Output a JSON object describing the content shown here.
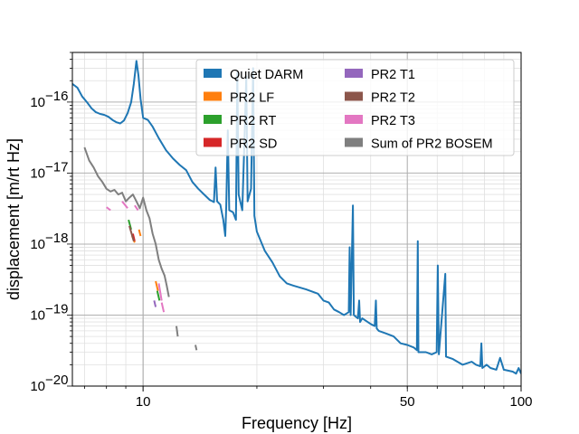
{
  "chart_data": {
    "type": "line",
    "title": "",
    "xlabel": "Frequency [Hz]",
    "ylabel": "displacement [m/rt Hz]",
    "x_scale": "log",
    "y_scale": "log",
    "xlim": [
      6.5,
      100
    ],
    "ylim": [
      1e-20,
      5e-16
    ],
    "x_ticks": [
      {
        "value": 10,
        "label": "10"
      },
      {
        "value": 50,
        "label": "50"
      },
      {
        "value": 100,
        "label": "100"
      }
    ],
    "y_ticks": [
      {
        "value": 1e-20,
        "base": "10",
        "exp": "−20"
      },
      {
        "value": 1e-19,
        "base": "10",
        "exp": "−19"
      },
      {
        "value": 1e-18,
        "base": "10",
        "exp": "−18"
      },
      {
        "value": 1e-17,
        "base": "10",
        "exp": "−17"
      },
      {
        "value": 1e-16,
        "base": "10",
        "exp": "−16"
      }
    ],
    "grid": true,
    "legend_position": "top-right",
    "series": [
      {
        "name": "Quiet DARM",
        "color": "#1f77b4",
        "points": [
          [
            6.5,
            1.8e-16
          ],
          [
            6.7,
            1.6e-16
          ],
          [
            6.9,
            1.2e-16
          ],
          [
            7.1,
            1e-16
          ],
          [
            7.3,
            8.2e-17
          ],
          [
            7.5,
            7.2e-17
          ],
          [
            7.7,
            6.8e-17
          ],
          [
            7.9,
            6.6e-17
          ],
          [
            8.1,
            6.2e-17
          ],
          [
            8.3,
            5.6e-17
          ],
          [
            8.5,
            5.2e-17
          ],
          [
            8.7,
            5e-17
          ],
          [
            8.9,
            5.5e-17
          ],
          [
            9.1,
            7e-17
          ],
          [
            9.3,
            1e-16
          ],
          [
            9.45,
            1.8e-16
          ],
          [
            9.6,
            3.8e-16
          ],
          [
            9.72,
            2.4e-16
          ],
          [
            9.85,
            1.1e-16
          ],
          [
            10.0,
            6e-17
          ],
          [
            10.3,
            5.6e-17
          ],
          [
            10.6,
            4.5e-17
          ],
          [
            11.0,
            3.1e-17
          ],
          [
            11.5,
            2.1e-17
          ],
          [
            12.0,
            1.6e-17
          ],
          [
            12.5,
            1.3e-17
          ],
          [
            13.0,
            1.1e-17
          ],
          [
            13.5,
            7.5e-18
          ],
          [
            14.0,
            6e-18
          ],
          [
            14.5,
            5e-18
          ],
          [
            15.0,
            4.2e-18
          ],
          [
            15.4,
            3.9e-18
          ],
          [
            15.55,
            1.2e-17
          ],
          [
            15.7,
            4e-18
          ],
          [
            16.0,
            3.6e-18
          ],
          [
            16.3,
            2.2e-18
          ],
          [
            16.5,
            1.3e-18
          ],
          [
            16.6,
            3.5e-18
          ],
          [
            16.75,
            4e-17
          ],
          [
            16.9,
            3e-18
          ],
          [
            17.3,
            2.8e-18
          ],
          [
            17.6,
            2.2e-18
          ],
          [
            17.75,
            2.6e-16
          ],
          [
            17.9,
            5e-18
          ],
          [
            18.3,
            3e-18
          ],
          [
            18.6,
            5e-17
          ],
          [
            18.75,
            2.3e-16
          ],
          [
            18.9,
            4e-18
          ],
          [
            19.3,
            6e-18
          ],
          [
            19.55,
            3e-16
          ],
          [
            19.7,
            2.5e-18
          ],
          [
            20.0,
            1.5e-18
          ],
          [
            21.0,
            8e-19
          ],
          [
            22.0,
            5.5e-19
          ],
          [
            23.0,
            3.5e-19
          ],
          [
            24.0,
            2.8e-19
          ],
          [
            25.0,
            2.6e-19
          ],
          [
            27.0,
            2.3e-19
          ],
          [
            29.0,
            2e-19
          ],
          [
            30.0,
            1.6e-19
          ],
          [
            31.0,
            1.5e-19
          ],
          [
            32.0,
            1.2e-19
          ],
          [
            33.0,
            1.1e-19
          ],
          [
            34.0,
            1e-19
          ],
          [
            35.0,
            1.1e-19
          ],
          [
            35.2,
            9e-19
          ],
          [
            35.4,
            1e-19
          ],
          [
            35.9,
            3.5e-18
          ],
          [
            36.1,
            1e-19
          ],
          [
            37.0,
            9e-20
          ],
          [
            37.3,
            1.6e-19
          ],
          [
            37.5,
            8e-20
          ],
          [
            38.0,
            9e-20
          ],
          [
            40.0,
            7.5e-20
          ],
          [
            41.0,
            7e-20
          ],
          [
            41.3,
            1.6e-19
          ],
          [
            41.5,
            6.5e-20
          ],
          [
            42.0,
            6e-20
          ],
          [
            44.0,
            5.5e-20
          ],
          [
            46.0,
            5e-20
          ],
          [
            48.0,
            4e-20
          ],
          [
            50.0,
            3.8e-20
          ],
          [
            52.0,
            3.5e-20
          ],
          [
            53.0,
            3.2e-20
          ],
          [
            53.3,
            1.1e-18
          ],
          [
            53.5,
            3e-20
          ],
          [
            56.0,
            3e-20
          ],
          [
            58.0,
            2.8e-20
          ],
          [
            59.8,
            3e-20
          ],
          [
            60.2,
            5e-19
          ],
          [
            60.6,
            2.8e-20
          ],
          [
            63.0,
            3.8e-19
          ],
          [
            63.3,
            2.6e-20
          ],
          [
            66.0,
            2.4e-20
          ],
          [
            70.0,
            2e-20
          ],
          [
            74.0,
            2.2e-20
          ],
          [
            76.0,
            2e-20
          ],
          [
            78.0,
            1.9e-20
          ],
          [
            78.5,
            4e-20
          ],
          [
            79.0,
            1.8e-20
          ],
          [
            81.0,
            2e-20
          ],
          [
            83.0,
            1.8e-20
          ],
          [
            86.0,
            1.7e-20
          ],
          [
            88.0,
            2.5e-20
          ],
          [
            90.0,
            1.7e-20
          ],
          [
            95.0,
            1.6e-20
          ],
          [
            97.0,
            1.5e-20
          ],
          [
            98.5,
            1.8e-20
          ],
          [
            100.0,
            1.5e-20
          ]
        ]
      },
      {
        "name": "PR2 LF",
        "color": "#ff7f0e",
        "segments": [
          [
            [
              9.35,
              1.3e-18
            ],
            [
              9.5,
              1.05e-18
            ]
          ],
          [
            [
              9.75,
              1.6e-18
            ],
            [
              9.85,
              1.3e-18
            ]
          ],
          [
            [
              10.8,
              3e-19
            ],
            [
              10.95,
              2.2e-19
            ]
          ]
        ]
      },
      {
        "name": "PR2 RT",
        "color": "#2ca02c",
        "segments": [
          [
            [
              9.15,
              2.2e-18
            ],
            [
              9.3,
              1.6e-18
            ]
          ],
          [
            [
              10.9,
              2.2e-19
            ],
            [
              11.05,
              1.6e-19
            ]
          ]
        ]
      },
      {
        "name": "PR2 SD",
        "color": "#d62728",
        "segments": [
          [
            [
              9.4,
              1.4e-18
            ],
            [
              9.5,
              1.1e-18
            ]
          ]
        ]
      },
      {
        "name": "PR2 T1",
        "color": "#9467bd",
        "segments": [
          [
            [
              10.7,
              1.6e-19
            ],
            [
              10.8,
              1.3e-19
            ]
          ]
        ]
      },
      {
        "name": "PR2 T2",
        "color": "#8c564b",
        "segments": [
          [
            [
              9.2,
              1.8e-18
            ],
            [
              9.45,
              1.1e-18
            ]
          ]
        ]
      },
      {
        "name": "PR2 T3",
        "color": "#e377c2",
        "segments": [
          [
            [
              8.0,
              3.3e-18
            ],
            [
              8.2,
              3e-18
            ]
          ],
          [
            [
              8.8,
              4e-18
            ],
            [
              9.1,
              3.2e-18
            ]
          ],
          [
            [
              9.5,
              3.5e-18
            ],
            [
              9.7,
              3e-18
            ]
          ],
          [
            [
              11.0,
              2.8e-19
            ],
            [
              11.2,
              1.6e-19
            ]
          ],
          [
            [
              11.2,
              1.5e-19
            ],
            [
              11.35,
              1.1e-19
            ]
          ]
        ]
      },
      {
        "name": "Sum of PR2 BOSEM",
        "color": "#7f7f7f",
        "segments": [
          [
            [
              7.0,
              2.3e-17
            ],
            [
              7.2,
              1.5e-17
            ],
            [
              7.4,
              1.2e-17
            ],
            [
              7.6,
              9e-18
            ],
            [
              7.8,
              7.5e-18
            ],
            [
              8.0,
              6e-18
            ],
            [
              8.2,
              5.5e-18
            ],
            [
              8.4,
              5.8e-18
            ],
            [
              8.6,
              5e-18
            ],
            [
              8.8,
              5.3e-18
            ],
            [
              9.0,
              4e-18
            ],
            [
              9.2,
              4.5e-18
            ],
            [
              9.4,
              5e-18
            ],
            [
              9.6,
              4e-18
            ],
            [
              9.8,
              3.2e-18
            ],
            [
              10.0,
              4.5e-18
            ],
            [
              10.2,
              3e-18
            ],
            [
              10.4,
              2.3e-18
            ],
            [
              10.6,
              1.4e-18
            ],
            [
              10.8,
              1e-18
            ],
            [
              11.0,
              6e-19
            ],
            [
              11.2,
              4.5e-19
            ],
            [
              11.4,
              3.6e-19
            ],
            [
              11.55,
              2.6e-19
            ],
            [
              11.7,
              1.8e-19
            ]
          ],
          [
            [
              12.25,
              7e-20
            ],
            [
              12.35,
              5e-20
            ]
          ],
          [
            [
              13.75,
              3.8e-20
            ],
            [
              13.85,
              3.2e-20
            ]
          ]
        ]
      }
    ]
  }
}
